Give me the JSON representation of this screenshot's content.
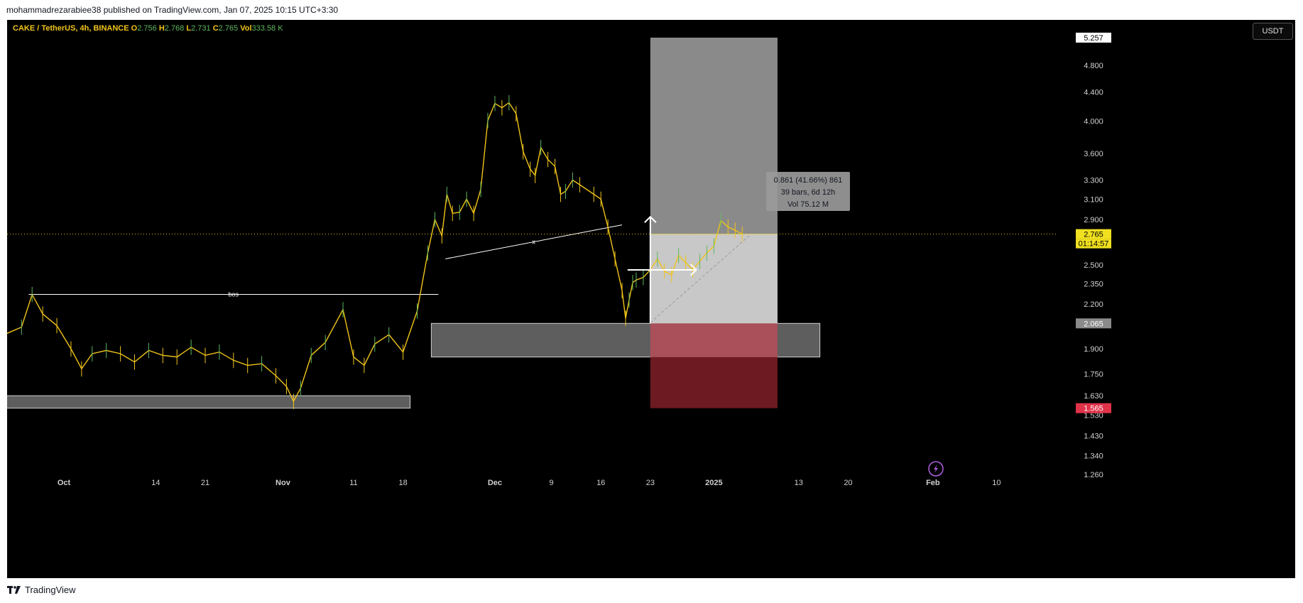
{
  "header": {
    "published": "mohammadrezarabiee38 published on TradingView.com, Jan 07, 2025 10:15 UTC+3:30"
  },
  "legend": {
    "symbol": "CAKE / TetherUS, 4h, BINANCE",
    "o_label": "O",
    "o_value": "2.756",
    "h_label": "H",
    "h_value": "2.768",
    "l_label": "L",
    "l_value": "2.731",
    "c_label": "C",
    "c_value": "2.765",
    "vol_label": "Vol",
    "vol_value": "333.58 K"
  },
  "currency": "USDT",
  "footer": {
    "brand": "TradingView"
  },
  "colors": {
    "background": "#000000",
    "price": "#f0c419",
    "up": "#5fb85f",
    "target": "#c0c0c0",
    "stop": "#8b1c24"
  },
  "chart_data": {
    "type": "line",
    "title": "",
    "xlabel": "",
    "ylabel": "",
    "y_scale": "log",
    "ylim": [
      1.26,
      5.257
    ],
    "y_ticks": [
      "4.800",
      "4.400",
      "4.000",
      "3.600",
      "3.300",
      "3.100",
      "2.900",
      "2.500",
      "2.350",
      "2.200",
      "1.900",
      "1.750",
      "1.630",
      "1.530",
      "1.430",
      "1.340",
      "1.260"
    ],
    "x_ticks": [
      "Oct",
      "14",
      "21",
      "Nov",
      "11",
      "18",
      "Dec",
      "9",
      "16",
      "23",
      "2025",
      "13",
      "20",
      "Feb",
      "10"
    ],
    "x_tick_days": [
      0,
      13,
      20,
      31,
      41,
      48,
      61,
      69,
      76,
      83,
      92,
      104,
      111,
      123,
      132
    ],
    "series": [
      {
        "x_days": [
          -9,
          -6,
          -4.5,
          -3,
          -1,
          1,
          2.5,
          4,
          6,
          8,
          10,
          12,
          14,
          16,
          18,
          20,
          22,
          24,
          26,
          28,
          30,
          31.5,
          32.5,
          33.5,
          35,
          37,
          39.5,
          41,
          42.5,
          44,
          46,
          48,
          50,
          51.5,
          52.5,
          53.5,
          54.2,
          55,
          56,
          57,
          58,
          59,
          60,
          61,
          62,
          63,
          64,
          65,
          66,
          66.7,
          67.5,
          68.5,
          69.5,
          70.3,
          71,
          72,
          73,
          75,
          76,
          77,
          78,
          79,
          79.5,
          80,
          80.5,
          81,
          82,
          83,
          84,
          85,
          86,
          87,
          88,
          89,
          90,
          91,
          92,
          93,
          94,
          95,
          96
        ],
        "values": [
          1.98,
          2.04,
          2.27,
          2.13,
          2.05,
          1.9,
          1.78,
          1.87,
          1.89,
          1.87,
          1.82,
          1.89,
          1.86,
          1.85,
          1.91,
          1.86,
          1.88,
          1.83,
          1.8,
          1.81,
          1.74,
          1.68,
          1.6,
          1.67,
          1.86,
          1.94,
          2.16,
          1.85,
          1.8,
          1.93,
          1.99,
          1.88,
          2.15,
          2.6,
          2.9,
          2.75,
          3.15,
          2.96,
          2.97,
          3.1,
          2.96,
          3.2,
          4.01,
          4.24,
          4.18,
          4.25,
          4.1,
          3.62,
          3.42,
          3.35,
          3.67,
          3.53,
          3.45,
          3.15,
          3.18,
          3.3,
          3.25,
          3.15,
          3.1,
          2.83,
          2.55,
          2.3,
          2.1,
          2.23,
          2.36,
          2.38,
          2.4,
          2.46,
          2.55,
          2.45,
          2.42,
          2.58,
          2.52,
          2.46,
          2.53,
          2.6,
          2.66,
          2.89,
          2.83,
          2.8,
          2.765
        ]
      }
    ],
    "current_price": 2.765,
    "current_price_label": "2.765",
    "countdown_label": "01:14:57",
    "top_price_label": "5.257",
    "stop_price": 1.565,
    "stop_price_label": "1.565",
    "entry_price": 2.065,
    "entry_price_label": "2.065",
    "zones": [
      {
        "x0": -9,
        "x1": 49,
        "y0": 1.565,
        "y1": 1.63
      },
      {
        "x0": 52,
        "x1": 107,
        "y0": 1.85,
        "y1": 2.065
      }
    ],
    "position": {
      "x0": 83,
      "x1": 101,
      "entry": 2.065,
      "target": 5.257,
      "stop": 1.565
    },
    "bos_line": {
      "x0": -5,
      "x1": 53,
      "y": 2.27,
      "label": "bos"
    },
    "trend_line": {
      "x0": 54,
      "x1": 79,
      "y0": 2.55,
      "y1": 2.85,
      "label": "x"
    },
    "dashed_line": {
      "x0": 83,
      "x1": 97,
      "y0": 2.07,
      "y1": 2.75
    },
    "measure": {
      "x0": 83,
      "x1": 89.5,
      "y0": 2.065,
      "y1": 2.926,
      "line1": "0.861 (41.66%) 861",
      "line2": "39 bars, 6d 12h",
      "line3": "Vol 75.12 M"
    }
  }
}
